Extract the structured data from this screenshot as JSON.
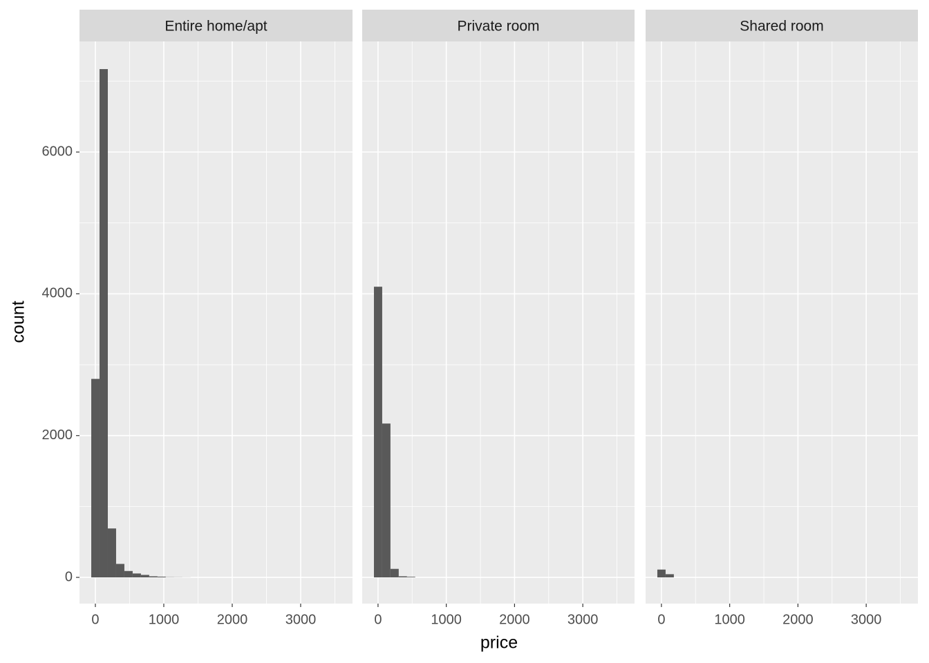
{
  "chart_data": {
    "type": "histogram",
    "xlabel": "price",
    "ylabel": "count",
    "xlim": [
      -232,
      3758
    ],
    "ylim": [
      -370,
      7560
    ],
    "xticks": [
      0,
      1000,
      2000,
      3000
    ],
    "yticks": [
      0,
      2000,
      4000,
      6000
    ],
    "x_minor_breaks": [
      500,
      1500,
      2500,
      3500
    ],
    "y_minor_breaks": [
      1000,
      3000,
      5000,
      7000
    ],
    "grid": true,
    "color": "#595959",
    "bins": [
      -60,
      61,
      182,
      303,
      424,
      545,
      666,
      787,
      908,
      1029,
      1150,
      1271,
      1392
    ],
    "panels": [
      {
        "title": "Entire home/apt",
        "counts": [
          2800,
          7170,
          690,
          190,
          90,
          55,
          35,
          15,
          10,
          3,
          2,
          1
        ]
      },
      {
        "title": "Private room",
        "counts": [
          4100,
          2170,
          120,
          15,
          8,
          0,
          0,
          0,
          0,
          0,
          0,
          0
        ]
      },
      {
        "title": "Shared room",
        "counts": [
          110,
          45,
          0,
          0,
          0,
          0,
          0,
          0,
          0,
          0,
          0,
          0
        ]
      }
    ]
  }
}
